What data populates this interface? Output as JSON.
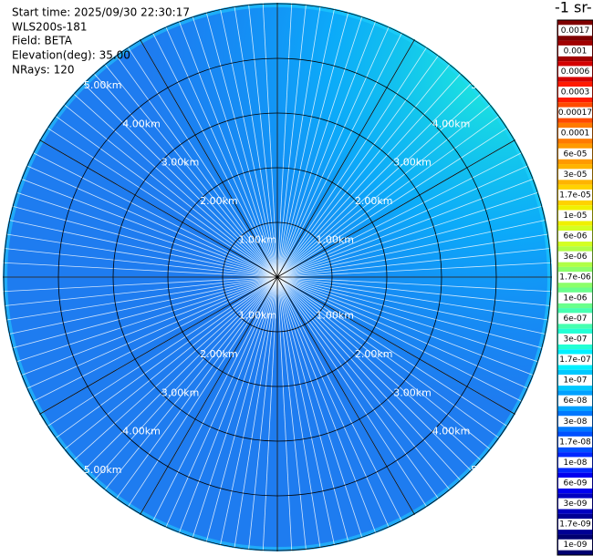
{
  "header": {
    "lines": [
      "Start time: 2025/09/30 22:30:17",
      "WLS200s-181",
      "Field: BETA",
      "Elevation(deg): 35.00",
      "NRays: 120"
    ]
  },
  "chart_data": {
    "type": "ppi",
    "range_rings": {
      "values": [
        1,
        2,
        3,
        4,
        5
      ],
      "labels": [
        "1.00km",
        "2.00km",
        "3.00km",
        "4.00km",
        "5.00km"
      ]
    },
    "colorbar": {
      "title": "-1 sr-",
      "ticks": [
        0.0017,
        0.001,
        0.0006,
        0.0003,
        0.00017,
        0.0001,
        {
          "value": 6e-05,
          "label": "6e-05"
        },
        {
          "value": 3e-05,
          "label": "3e-05"
        },
        {
          "value": 1.7e-05,
          "label": "1.7e-05"
        },
        {
          "value": 1e-05,
          "label": "1e-05"
        },
        {
          "value": 6e-06,
          "label": "6e-06"
        },
        {
          "value": 3e-06,
          "label": "3e-06"
        },
        {
          "value": 1.7e-06,
          "label": "1.7e-06"
        },
        {
          "value": 1e-06,
          "label": "1e-06"
        },
        {
          "value": 6e-07,
          "label": "6e-07"
        },
        {
          "value": 3e-07,
          "label": "3e-07"
        },
        {
          "value": 1.7e-07,
          "label": "1.7e-07"
        },
        {
          "value": 1e-07,
          "label": "1e-07"
        },
        {
          "value": 6e-08,
          "label": "6e-08"
        },
        {
          "value": 3e-08,
          "label": "3e-08"
        },
        {
          "value": 1.7e-08,
          "label": "1.7e-08"
        },
        {
          "value": 1e-08,
          "label": "1e-08"
        },
        {
          "value": 6e-09,
          "label": "6e-09"
        },
        {
          "value": 3e-09,
          "label": "3e-09"
        },
        {
          "value": 1.7e-09,
          "label": "1.7e-09"
        },
        {
          "value": 1e-09,
          "label": "1e-09"
        }
      ],
      "colors": [
        "#7f0000",
        "#a00000",
        "#d40000",
        "#ff1a00",
        "#ff4a00",
        "#ff7a00",
        "#ff9a00",
        "#ffb400",
        "#ffd200",
        "#f0f000",
        "#d4ff22",
        "#b0ff46",
        "#8cff6a",
        "#6aff8c",
        "#46ffb0",
        "#22ffd4",
        "#00f0ff",
        "#00c8ff",
        "#00a0ff",
        "#0078ff",
        "#0050ff",
        "#0028ff",
        "#0000f0",
        "#0000c0",
        "#000094",
        "#000070"
      ]
    }
  }
}
